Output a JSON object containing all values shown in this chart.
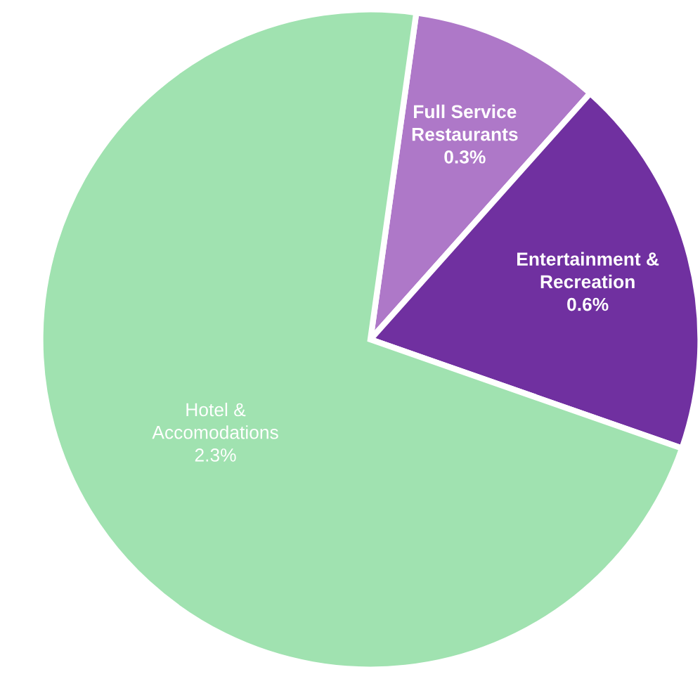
{
  "chart_data": {
    "type": "pie",
    "categories": [
      "Full Service\nRestaurants",
      "Entertainment &\nRecreation",
      "Hotel &\nAccomodations"
    ],
    "values": [
      0.3,
      0.6,
      2.3
    ],
    "value_labels": [
      "0.3%",
      "0.6%",
      "2.3%"
    ],
    "colors": [
      "#ae78c8",
      "#7030a0",
      "#a0e2b0"
    ],
    "legend": false
  }
}
